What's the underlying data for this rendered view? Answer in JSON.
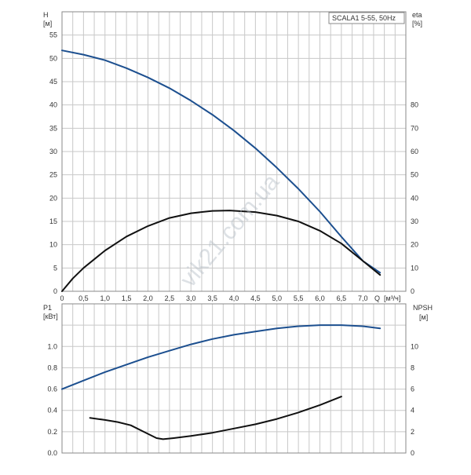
{
  "chart_data": [
    {
      "type": "line",
      "legend_label": "SCALA1 5-55, 50Hz",
      "left_axis": {
        "label": "H",
        "unit": "[м]",
        "ylim": [
          0,
          60
        ],
        "ticks": [
          0,
          5,
          10,
          15,
          20,
          25,
          30,
          35,
          40,
          45,
          50,
          55
        ]
      },
      "right_axis": {
        "label": "eta",
        "unit": "[%]",
        "ylim": [
          0,
          120
        ],
        "ticks": [
          0,
          10,
          20,
          30,
          40,
          50,
          60,
          70,
          80
        ]
      },
      "x_axis": {
        "label": "Q",
        "unit": "[м³/ч]",
        "xlim": [
          0,
          8
        ],
        "ticks": [
          "0",
          "0,5",
          "1,0",
          "1,5",
          "2,0",
          "2,5",
          "3,0",
          "3,5",
          "4,0",
          "4,5",
          "5,0",
          "5,5",
          "6,0",
          "6,5",
          "7,0"
        ]
      },
      "grid": true,
      "series": [
        {
          "axis": "left",
          "color": "#1c4f8f",
          "x": [
            0,
            0.5,
            1.0,
            1.5,
            2.0,
            2.5,
            3.0,
            3.5,
            4.0,
            4.5,
            5.0,
            5.5,
            6.0,
            6.5,
            7.0,
            7.4
          ],
          "y": [
            51.7,
            50.8,
            49.6,
            47.9,
            45.9,
            43.6,
            40.9,
            37.9,
            34.5,
            30.7,
            26.5,
            22.0,
            17.1,
            11.7,
            6.5,
            4.0
          ]
        },
        {
          "axis": "right",
          "color": "#111111",
          "x": [
            0,
            0.25,
            0.5,
            1.0,
            1.5,
            2.0,
            2.5,
            3.0,
            3.5,
            3.9,
            4.5,
            5.0,
            5.5,
            6.0,
            6.5,
            7.0,
            7.4
          ],
          "y": [
            0,
            5.5,
            10,
            17.5,
            23.5,
            28,
            31.5,
            33.5,
            34.5,
            34.7,
            34,
            32.5,
            30,
            26,
            20.5,
            13,
            7
          ]
        }
      ]
    },
    {
      "type": "line",
      "left_axis": {
        "label": "P1",
        "unit": "[кВт]",
        "ylim": [
          0,
          1.4
        ],
        "ticks": [
          "0.0",
          "0.2",
          "0.4",
          "0.6",
          "0.8",
          "1.0"
        ]
      },
      "right_axis": {
        "label": "NPSH",
        "unit": "[м]",
        "ylim": [
          0,
          14
        ],
        "ticks": [
          0,
          2,
          4,
          6,
          8,
          10
        ]
      },
      "x_axis": {
        "xlim": [
          0,
          8
        ]
      },
      "grid": true,
      "series": [
        {
          "axis": "left",
          "color": "#1c4f8f",
          "x": [
            0,
            0.5,
            1.0,
            1.5,
            2.0,
            2.5,
            3.0,
            3.5,
            4.0,
            4.5,
            5.0,
            5.5,
            6.0,
            6.5,
            7.0,
            7.4
          ],
          "y": [
            0.6,
            0.68,
            0.76,
            0.83,
            0.9,
            0.96,
            1.02,
            1.07,
            1.11,
            1.14,
            1.17,
            1.19,
            1.2,
            1.2,
            1.19,
            1.17
          ]
        },
        {
          "axis": "right",
          "color": "#111111",
          "x": [
            0.65,
            1.0,
            1.3,
            1.6,
            1.9,
            2.2,
            2.35,
            2.6,
            3.0,
            3.5,
            4.0,
            4.5,
            5.0,
            5.5,
            6.0,
            6.5
          ],
          "y": [
            3.3,
            3.1,
            2.9,
            2.6,
            2.0,
            1.4,
            1.3,
            1.4,
            1.6,
            1.9,
            2.3,
            2.7,
            3.2,
            3.8,
            4.5,
            5.3
          ]
        }
      ]
    }
  ],
  "watermark": "vik21.com.ua"
}
